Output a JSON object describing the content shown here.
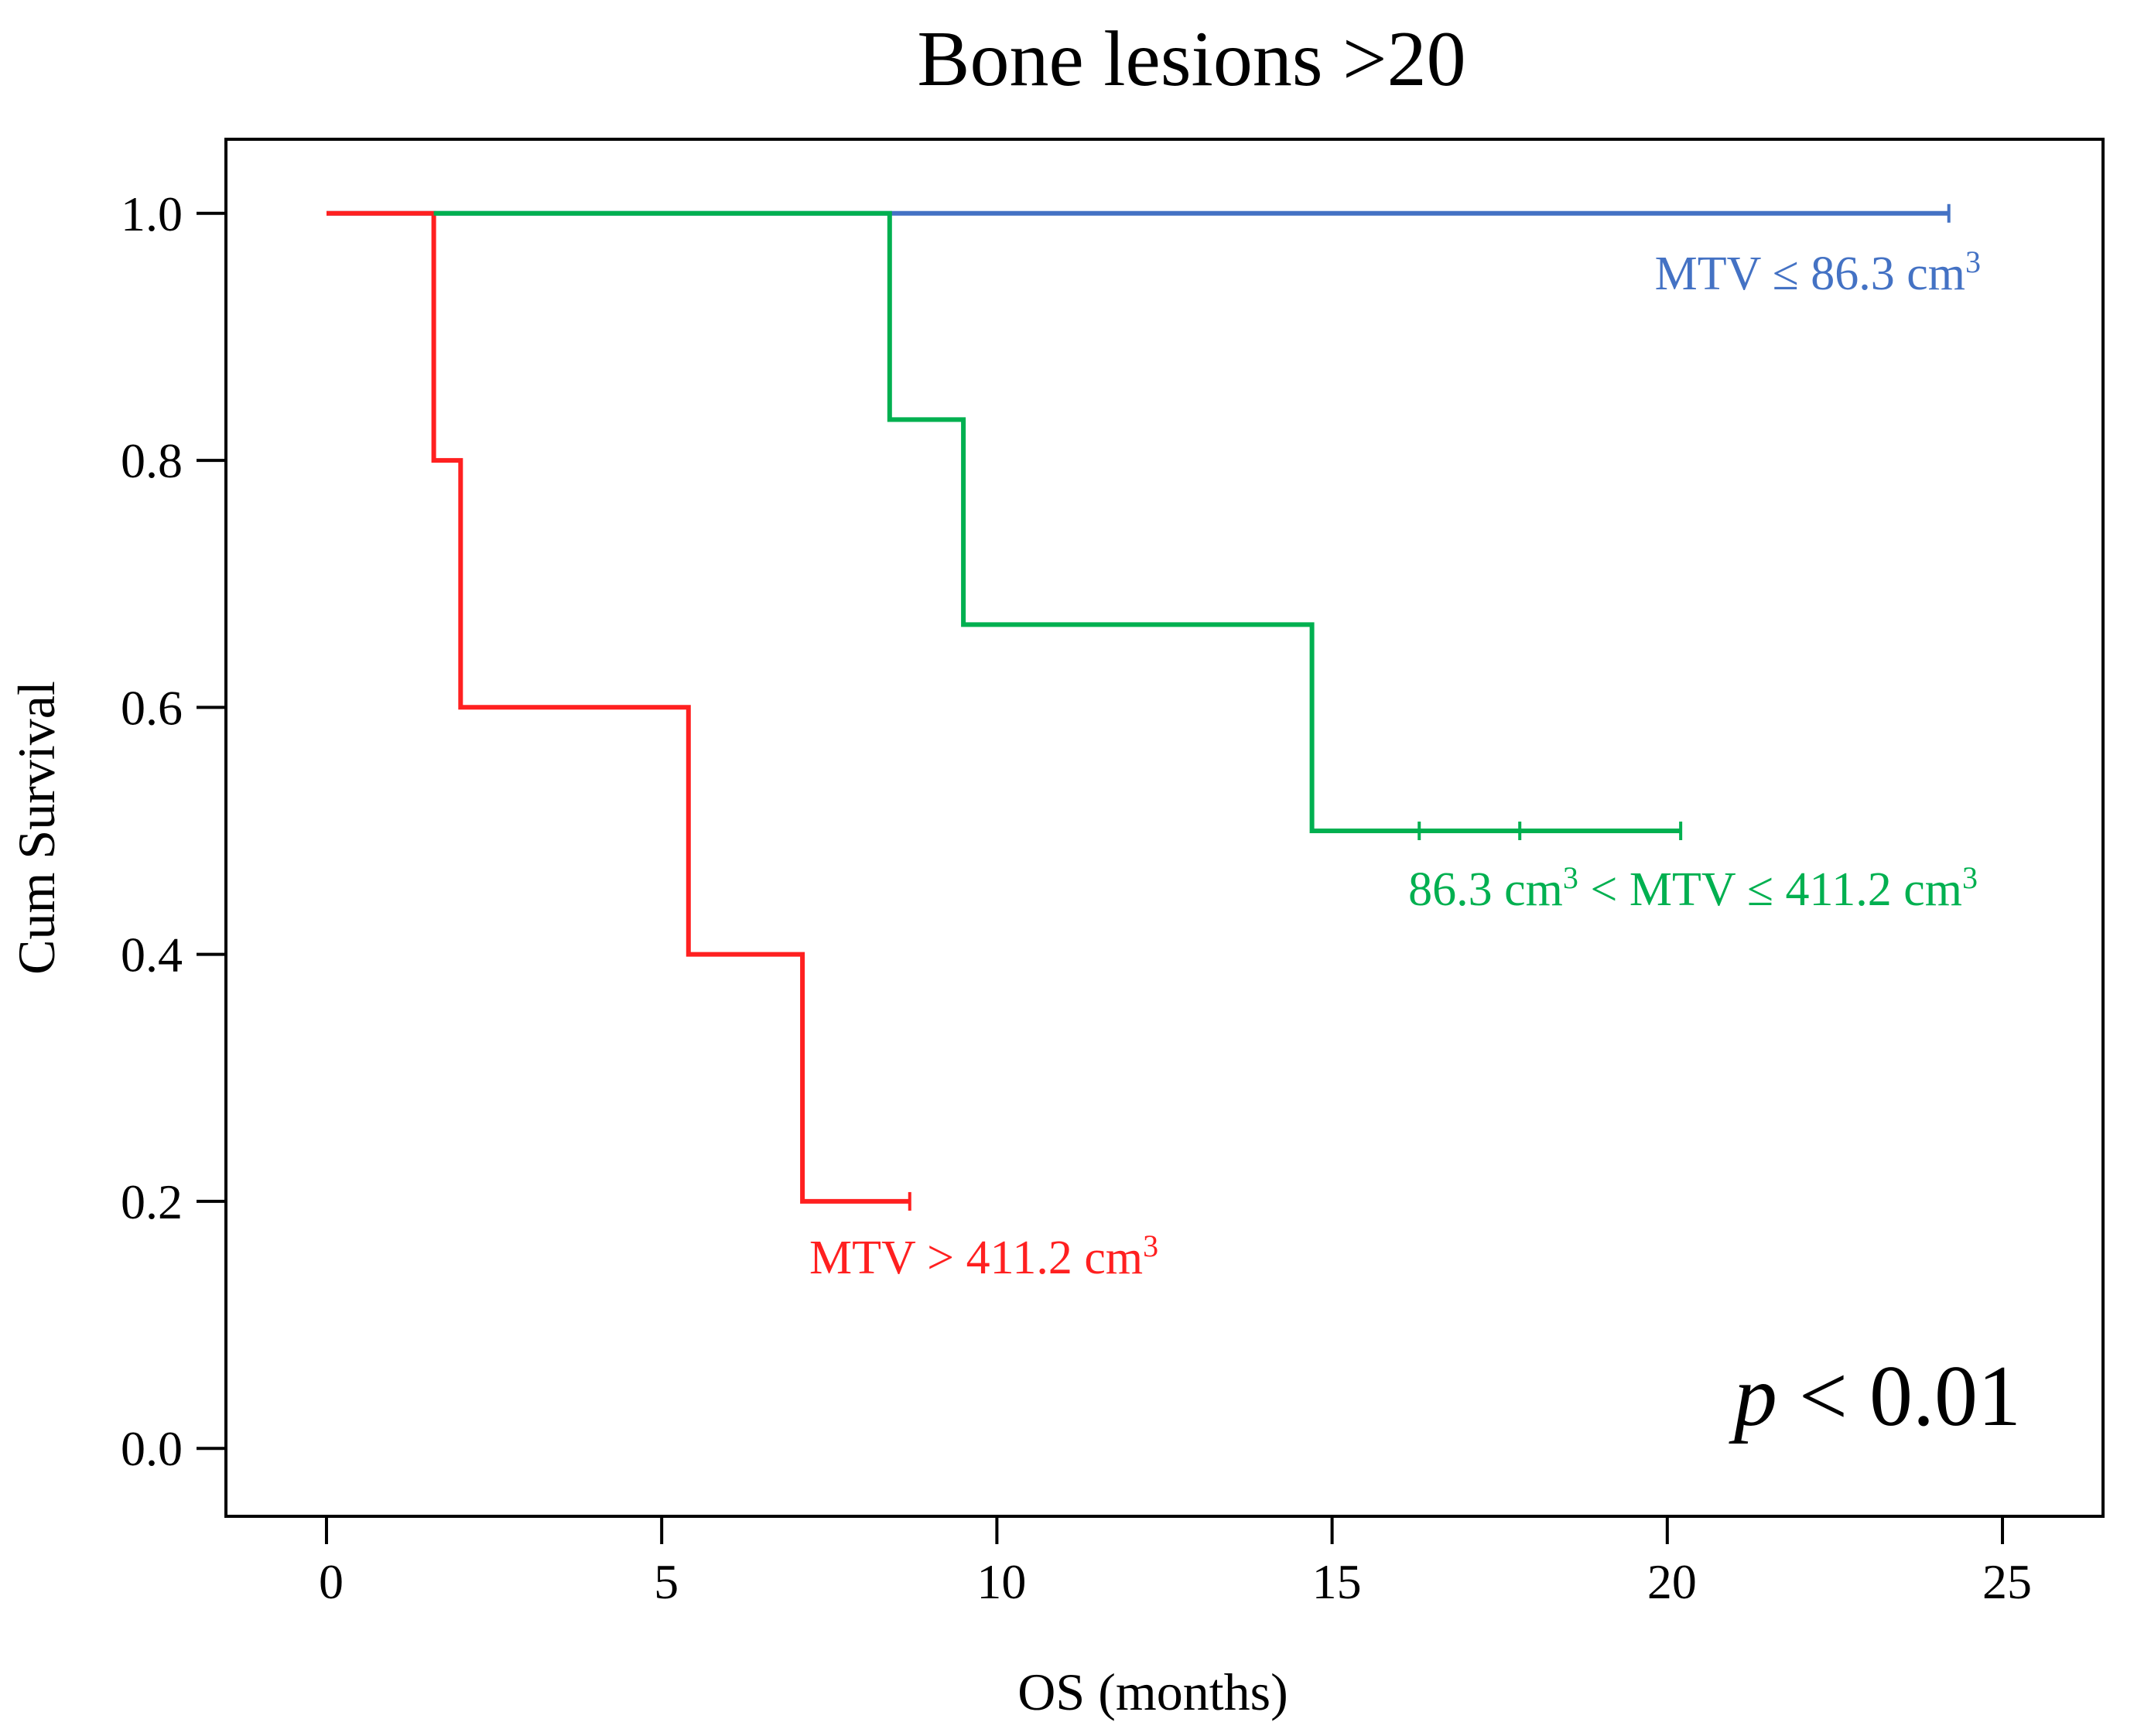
{
  "chart_data": {
    "type": "line",
    "subtype": "kaplan-meier",
    "title": "Bone lesions >20",
    "xlabel": "OS (months)",
    "ylabel": "Cum Survival",
    "xlim": [
      -1.5,
      26.5
    ],
    "ylim": [
      -0.055,
      1.06
    ],
    "xticks": [
      0,
      5,
      10,
      15,
      20,
      25
    ],
    "yticks": [
      0.0,
      0.2,
      0.4,
      0.6,
      0.8,
      1.0
    ],
    "xtick_labels": [
      "0",
      "5",
      "10",
      "15",
      "20",
      "25"
    ],
    "ytick_labels": [
      "0.0",
      "0.2",
      "0.4",
      "0.6",
      "0.8",
      "1.0"
    ],
    "grid": false,
    "annotation": {
      "p_symbol": "p",
      "p_rest": " < 0.01"
    },
    "series": [
      {
        "name": "MTV ≤ 86.3 cm³",
        "label_main": "MTV ≤ 86.3 cm",
        "label_sup": "3",
        "label_suffix": "",
        "color": "#4472c4",
        "steps": [
          [
            0,
            1.0
          ],
          [
            24.2,
            1.0
          ]
        ],
        "censored": [
          24.2
        ]
      },
      {
        "name": "86.3 cm³ < MTV ≤ 411.2 cm³",
        "label_main": "86.3 cm",
        "label_sup": "3",
        "label_suffix": " < MTV ≤ 411.2 cm",
        "label_sup2": "3",
        "color": "#00b050",
        "steps": [
          [
            1.6,
            1.0
          ],
          [
            8.4,
            1.0
          ],
          [
            8.4,
            0.833
          ],
          [
            9.5,
            0.833
          ],
          [
            9.5,
            0.667
          ],
          [
            14.7,
            0.667
          ],
          [
            14.7,
            0.5
          ],
          [
            20.2,
            0.5
          ]
        ],
        "censored": [
          16.3,
          17.8,
          20.2
        ]
      },
      {
        "name": "MTV > 411.2 cm³",
        "label_main": "MTV > 411.2 cm",
        "label_sup": "3",
        "label_suffix": "",
        "color": "#ff2020",
        "steps": [
          [
            0,
            1.0
          ],
          [
            1.6,
            1.0
          ],
          [
            1.6,
            0.8
          ],
          [
            2.0,
            0.8
          ],
          [
            2.0,
            0.6
          ],
          [
            5.4,
            0.6
          ],
          [
            5.4,
            0.4
          ],
          [
            7.1,
            0.4
          ],
          [
            7.1,
            0.2
          ],
          [
            8.7,
            0.2
          ]
        ],
        "censored": [
          8.7
        ]
      }
    ]
  }
}
